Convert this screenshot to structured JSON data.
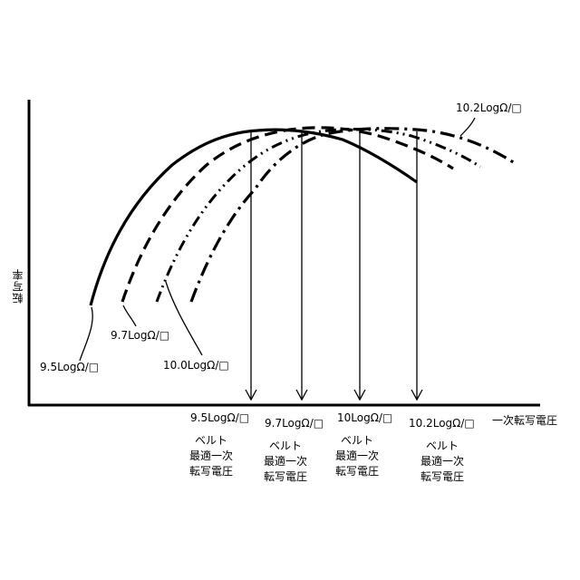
{
  "chart_data": {
    "type": "line",
    "xlabel": "一次転写電圧",
    "ylabel": "転写率",
    "series": [
      {
        "name": "9.5LogΩ/□",
        "style": "solid",
        "x": [
          0.08,
          0.2,
          0.35,
          0.5,
          0.62,
          0.75,
          0.86,
          1.0,
          1.1,
          1.2
        ],
        "y": [
          0.42,
          0.62,
          0.79,
          0.9,
          0.95,
          0.98,
          0.99,
          0.99,
          0.98,
          0.97
        ]
      },
      {
        "name": "9.7LogΩ/□",
        "style": "dashed",
        "x": [
          0.12,
          0.25,
          0.4,
          0.55,
          0.7,
          0.85,
          1.0,
          1.15,
          1.3,
          1.45,
          1.6
        ],
        "y": [
          0.42,
          0.62,
          0.79,
          0.9,
          0.95,
          0.98,
          0.99,
          0.99,
          0.98,
          0.96,
          0.93
        ]
      },
      {
        "name": "10.0LogΩ/□",
        "style": "dash-dot-dot",
        "x": [
          0.18,
          0.3,
          0.45,
          0.6,
          0.75,
          0.9,
          1.05,
          1.2,
          1.35,
          1.5,
          1.65,
          1.8
        ],
        "y": [
          0.42,
          0.62,
          0.79,
          0.9,
          0.95,
          0.98,
          0.99,
          0.99,
          0.98,
          0.96,
          0.94,
          0.91
        ]
      },
      {
        "name": "10.2LogΩ/□",
        "style": "dash-dot",
        "x": [
          0.23,
          0.35,
          0.5,
          0.65,
          0.8,
          0.95,
          1.1,
          1.25,
          1.4,
          1.55,
          1.7,
          1.85,
          2.0
        ],
        "y": [
          0.42,
          0.62,
          0.79,
          0.9,
          0.95,
          0.98,
          0.99,
          0.99,
          0.98,
          0.97,
          0.95,
          0.93,
          0.9
        ]
      }
    ],
    "series_labels": {
      "s95": "9.5LogΩ/□",
      "s97": "9.7LogΩ/□",
      "s100": "10.0LogΩ/□",
      "s102": "10.2LogΩ/□"
    },
    "optimum_markers": [
      {
        "voltage_label": "9.5LogΩ/□",
        "caption": [
          "ベルト",
          "最適一次",
          "転写電圧"
        ]
      },
      {
        "voltage_label": "9.7LogΩ/□",
        "caption": [
          "ベルト",
          "最適一次",
          "転写電圧"
        ]
      },
      {
        "voltage_label": "10LogΩ/□",
        "caption": [
          "ベルト",
          "最適一次",
          "転写電圧"
        ]
      },
      {
        "voltage_label": "10.2LogΩ/□",
        "caption": [
          "ベルト",
          "最適一次",
          "転写電圧"
        ]
      }
    ],
    "grid": false,
    "legend": "none"
  }
}
